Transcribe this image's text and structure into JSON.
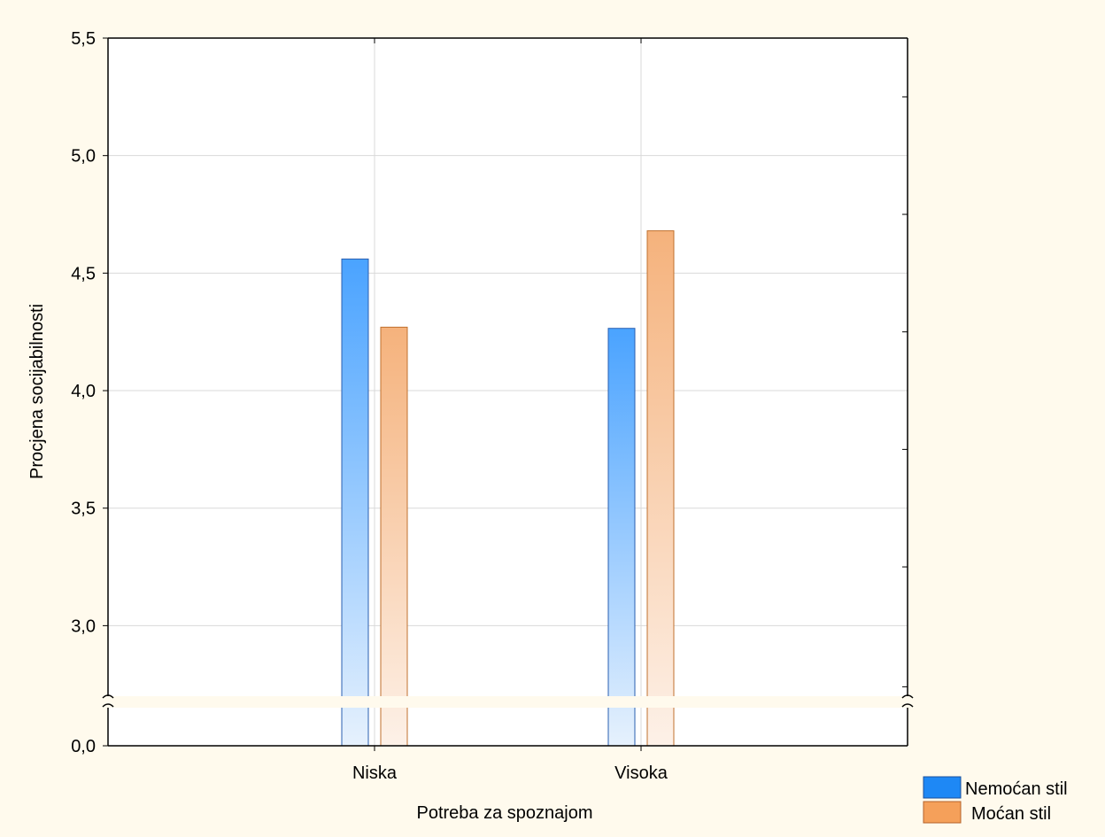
{
  "chart_data": {
    "type": "bar",
    "xlabel": "Potreba za spoznajom",
    "ylabel": "Procjena socijabilnosti",
    "categories": [
      "Niska",
      "Visoka"
    ],
    "series": [
      {
        "name": "Nemoćan stil",
        "values": [
          4.56,
          4.265
        ],
        "color": "#1e88f5"
      },
      {
        "name": "Moćan stil",
        "values": [
          4.27,
          4.68
        ],
        "color": "#f5a05a"
      }
    ],
    "ylim": [
      0.0,
      5.5
    ],
    "axis_break": [
      0.0,
      2.7
    ],
    "yticks": [
      {
        "value": 0.0,
        "label": "0,0"
      },
      {
        "value": 3.0,
        "label": "3,0"
      },
      {
        "value": 3.5,
        "label": "3,5"
      },
      {
        "value": 4.0,
        "label": "4,0"
      },
      {
        "value": 4.5,
        "label": "4,5"
      },
      {
        "value": 5.0,
        "label": "5,0"
      },
      {
        "value": 5.5,
        "label": "5,5"
      }
    ],
    "grid": true,
    "legend_position": "bottom-right",
    "plot_background": "#ffffff",
    "page_background": "#fffaed"
  }
}
